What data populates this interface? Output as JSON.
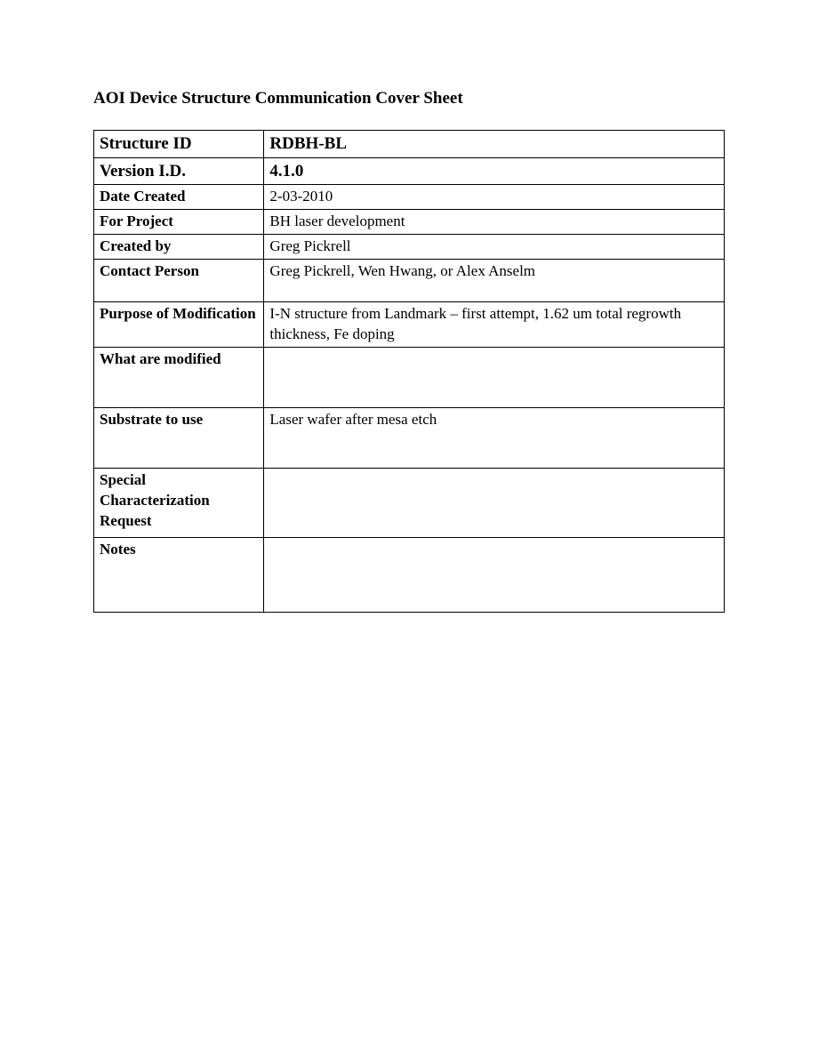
{
  "title": "AOI Device Structure Communication Cover Sheet",
  "rows": {
    "structure_id": {
      "label": "Structure ID",
      "value": "RDBH-BL"
    },
    "version_id": {
      "label": "Version I.D.",
      "value": "4.1.0"
    },
    "date_created": {
      "label": "Date Created",
      "value": "2-03-2010"
    },
    "for_project": {
      "label": "For Project",
      "value": "BH laser development"
    },
    "created_by": {
      "label": "Created by",
      "value": "Greg Pickrell"
    },
    "contact_person": {
      "label": "Contact Person",
      "value": "Greg Pickrell, Wen Hwang, or Alex Anselm"
    },
    "purpose": {
      "label": "Purpose of Modification",
      "value": "I-N structure from Landmark – first attempt, 1.62 um total regrowth thickness, Fe doping"
    },
    "what_modified": {
      "label": "What are modified",
      "value": ""
    },
    "substrate": {
      "label": "Substrate to use",
      "value": "Laser wafer after mesa etch"
    },
    "special_char": {
      "label": "Special Characterization Request",
      "value": ""
    },
    "notes": {
      "label": "Notes",
      "value": ""
    }
  }
}
